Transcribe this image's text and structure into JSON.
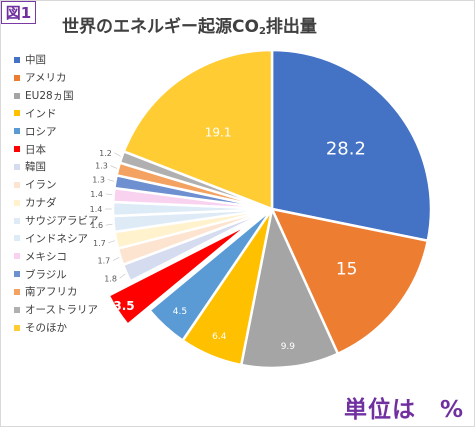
{
  "figure_label": "図1",
  "title_main": "世界のエネルギー起源CO",
  "title_sub": "2",
  "title_end": "排出量",
  "unit_label": "単位は　%",
  "chart_data": {
    "type": "pie",
    "title": "世界のエネルギー起源CO2排出量",
    "unit": "%",
    "legend_position": "left",
    "exploded_category": "日本",
    "categories": [
      "中国",
      "アメリカ",
      "EU28ヵ国",
      "インド",
      "ロシア",
      "日本",
      "韓国",
      "イラン",
      "カナダ",
      "サウジアラビア",
      "インドネシア",
      "メキシコ",
      "ブラジル",
      "南アフリカ",
      "オーストラリア",
      "そのほか"
    ],
    "values": [
      28.2,
      15,
      9.9,
      6.4,
      4.5,
      3.5,
      1.8,
      1.7,
      1.7,
      1.6,
      1.4,
      1.4,
      1.3,
      1.3,
      1.2,
      19.1
    ],
    "value_labels": [
      "28.2",
      "15",
      "9.9",
      "6.4",
      "4.5",
      "3.5",
      "1.8",
      "1.7",
      "1.7",
      "1.6",
      "1.4",
      "1.4",
      "1.3",
      "1.3",
      "1.2",
      "19.1"
    ],
    "colors": [
      "#4472c4",
      "#ed7d31",
      "#a5a5a5",
      "#ffc000",
      "#5b9bd5",
      "#ff0000",
      "#d6dcf0",
      "#fde4d0",
      "#fff2cc",
      "#deebf7",
      "#ddebf7",
      "#f9d2f0",
      "#6e8fd0",
      "#f4a261",
      "#b0b0b0",
      "#ffcc33"
    ]
  }
}
